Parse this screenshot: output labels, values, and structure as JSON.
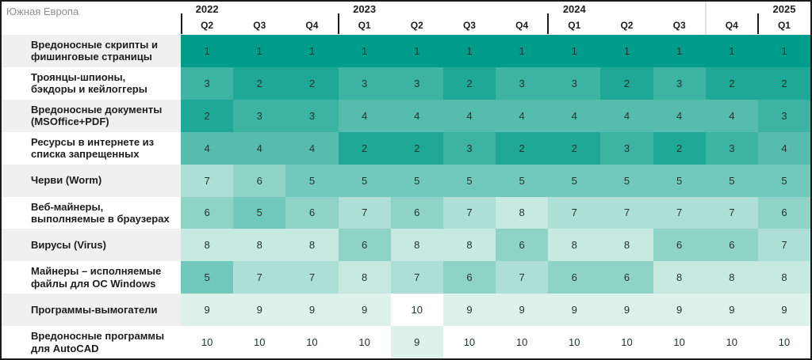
{
  "header": {
    "title": "Южная Европа"
  },
  "colors": {
    "frame_border": "#1a1a1a",
    "alt_row_bg": "#f0f0f0",
    "title_text": "#8f8f8f",
    "header_text": "#1d1d1b",
    "cell_text": "#203530",
    "scale": {
      "1": "#009c8b",
      "2": "#1fa896",
      "3": "#3cb3a3",
      "4": "#55bcae",
      "5": "#72c8ba",
      "6": "#8fd3c7",
      "7": "#aedfd6",
      "8": "#c6e9e1",
      "9": "#def2ec",
      "10": "#ffffff"
    }
  },
  "chart_data": {
    "type": "heatmap",
    "title": "Южная Европа",
    "value_range": [
      1,
      10
    ],
    "value_meaning": "rank; 1 = darkest teal, 10 = white",
    "year_groups": [
      {
        "year": "2022",
        "span": 3
      },
      {
        "year": "2023",
        "span": 4
      },
      {
        "year": "2024",
        "span": 4
      },
      {
        "year": "2025",
        "span": 1
      }
    ],
    "quarters": [
      "Q2",
      "Q3",
      "Q4",
      "Q1",
      "Q2",
      "Q3",
      "Q4",
      "Q1",
      "Q2",
      "Q3",
      "Q4",
      "Q1"
    ],
    "rows": [
      {
        "label": "Вредоносные скрипты и фишинговые страницы",
        "values": [
          1,
          1,
          1,
          1,
          1,
          1,
          1,
          1,
          1,
          1,
          1,
          1
        ]
      },
      {
        "label": "Троянцы-шпионы, бэкдоры и кейлоггеры",
        "values": [
          3,
          2,
          2,
          3,
          3,
          2,
          3,
          3,
          2,
          3,
          2,
          2
        ]
      },
      {
        "label": "Вредоносные документы (MSOffice+PDF)",
        "values": [
          2,
          3,
          3,
          4,
          4,
          4,
          4,
          4,
          4,
          4,
          4,
          3
        ]
      },
      {
        "label": "Ресурсы в интернете из списка запрещенных",
        "values": [
          4,
          4,
          4,
          2,
          2,
          3,
          2,
          2,
          3,
          2,
          3,
          4
        ]
      },
      {
        "label": "Черви (Worm)",
        "values": [
          7,
          6,
          5,
          5,
          5,
          5,
          5,
          5,
          5,
          5,
          5,
          5
        ]
      },
      {
        "label": "Веб-майнеры, выполняемые в браузерах",
        "values": [
          6,
          5,
          6,
          7,
          6,
          7,
          8,
          7,
          7,
          7,
          7,
          6
        ]
      },
      {
        "label": "Вирусы (Virus)",
        "values": [
          8,
          8,
          8,
          6,
          8,
          8,
          6,
          8,
          8,
          6,
          6,
          7
        ]
      },
      {
        "label": "Майнеры – исполняемые файлы для ОС Windows",
        "values": [
          5,
          7,
          7,
          8,
          7,
          6,
          7,
          6,
          6,
          8,
          8,
          8
        ]
      },
      {
        "label": "Программы-вымогатели",
        "values": [
          9,
          9,
          9,
          9,
          10,
          9,
          9,
          9,
          9,
          9,
          9,
          9
        ]
      },
      {
        "label": "Вредоносные программы для AutoCAD",
        "values": [
          10,
          10,
          10,
          10,
          9,
          10,
          10,
          10,
          10,
          10,
          10,
          10
        ]
      }
    ],
    "soft_gap_before_column": 10
  }
}
